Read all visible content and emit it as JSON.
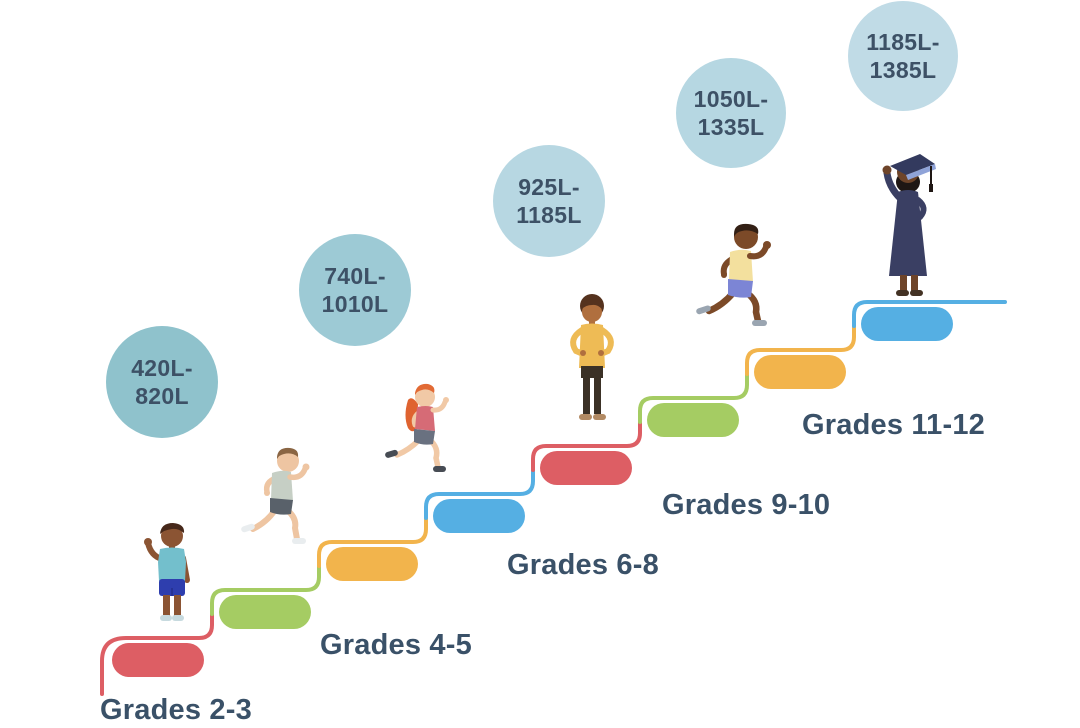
{
  "colors": {
    "label_text": "#3A5168",
    "circle_text": "#3D5166",
    "background": "#FFFFFF"
  },
  "staircase": {
    "step_colors": [
      "#DD5E64",
      "#A5CC63",
      "#F2B44C",
      "#55AFE3",
      "#DD5E64",
      "#A5CC63",
      "#F2B44C",
      "#55AFE3"
    ]
  },
  "levels": [
    {
      "grade": "Grades 2-3",
      "lexile_line1": "420L-",
      "lexile_line2": "820L",
      "circle_fill": "#8FC2CC"
    },
    {
      "grade": "Grades 4-5",
      "lexile_line1": "740L-",
      "lexile_line2": "1010L",
      "circle_fill": "#9DCAD5"
    },
    {
      "grade": "Grades 6-8",
      "lexile_line1": "925L-",
      "lexile_line2": "1185L",
      "circle_fill": "#B7D7E2"
    },
    {
      "grade": "Grades 9-10",
      "lexile_line1": "1050L-",
      "lexile_line2": "1335L",
      "circle_fill": "#B6D7E2"
    },
    {
      "grade": "Grades 11-12",
      "lexile_line1": "1185L-",
      "lexile_line2": "1385L",
      "circle_fill": "#C0DBE6"
    }
  ],
  "characters": [
    {
      "name": "standing-child-waving"
    },
    {
      "name": "running-boy"
    },
    {
      "name": "running-girl"
    },
    {
      "name": "standing-teen-hands-on-hips"
    },
    {
      "name": "running-teen"
    },
    {
      "name": "graduate-celebrating"
    }
  ]
}
